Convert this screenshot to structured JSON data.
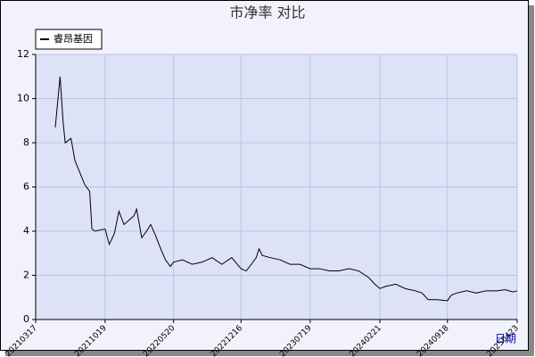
{
  "chart_data": {
    "type": "line",
    "title": "市净率  对比",
    "x_label": "日期",
    "x": [
      "20210517",
      "20210601",
      "20210610",
      "20210617",
      "20210705",
      "20210717",
      "20210817",
      "20210901",
      "20210908",
      "20210917",
      "20211019",
      "20211101",
      "20211117",
      "20211201",
      "20211217",
      "20220117",
      "20220125",
      "20220210",
      "20220225",
      "20220310",
      "20220325",
      "20220410",
      "20220425",
      "20220510",
      "20220520",
      "20220617",
      "20220717",
      "20220817",
      "20220917",
      "20221017",
      "20221117",
      "20221216",
      "20230101",
      "20230117",
      "20230201",
      "20230210",
      "20230220",
      "20230317",
      "20230417",
      "20230517",
      "20230617",
      "20230719",
      "20230817",
      "20230917",
      "20231017",
      "20231117",
      "20231217",
      "20240117",
      "20240205",
      "20240221",
      "20240310",
      "20240410",
      "20240510",
      "20240610",
      "20240701",
      "20240720",
      "20240817",
      "20240918",
      "20240930",
      "20241017",
      "20241117",
      "20241217",
      "20250117",
      "20250217",
      "20250317",
      "20250410",
      "20250423"
    ],
    "series": [
      {
        "name": "睿昂基因",
        "color": "#000000",
        "values": [
          8.7,
          11.0,
          9.0,
          8.0,
          8.2,
          7.2,
          6.1,
          5.8,
          4.1,
          4.0,
          4.1,
          3.4,
          3.9,
          4.9,
          4.3,
          4.7,
          5.0,
          3.7,
          4.0,
          4.3,
          3.8,
          3.2,
          2.7,
          2.4,
          2.6,
          2.7,
          2.5,
          2.6,
          2.8,
          2.5,
          2.8,
          2.3,
          2.2,
          2.5,
          2.8,
          3.2,
          2.9,
          2.8,
          2.7,
          2.5,
          2.5,
          2.3,
          2.3,
          2.2,
          2.2,
          2.3,
          2.2,
          1.9,
          1.6,
          1.4,
          1.5,
          1.6,
          1.4,
          1.3,
          1.2,
          0.9,
          0.9,
          0.85,
          1.1,
          1.2,
          1.3,
          1.2,
          1.3,
          1.3,
          1.35,
          1.25,
          1.3
        ]
      }
    ],
    "xlim": [
      "20210317",
      "20250423"
    ],
    "xticks": [
      "20210317",
      "20211019",
      "20220520",
      "20221216",
      "20230719",
      "20240221",
      "20240918",
      "20250423"
    ],
    "ylim": [
      0,
      12
    ],
    "yticks": [
      0,
      2,
      4,
      6,
      8,
      10,
      12
    ],
    "grid": true,
    "legend": "top-left"
  }
}
